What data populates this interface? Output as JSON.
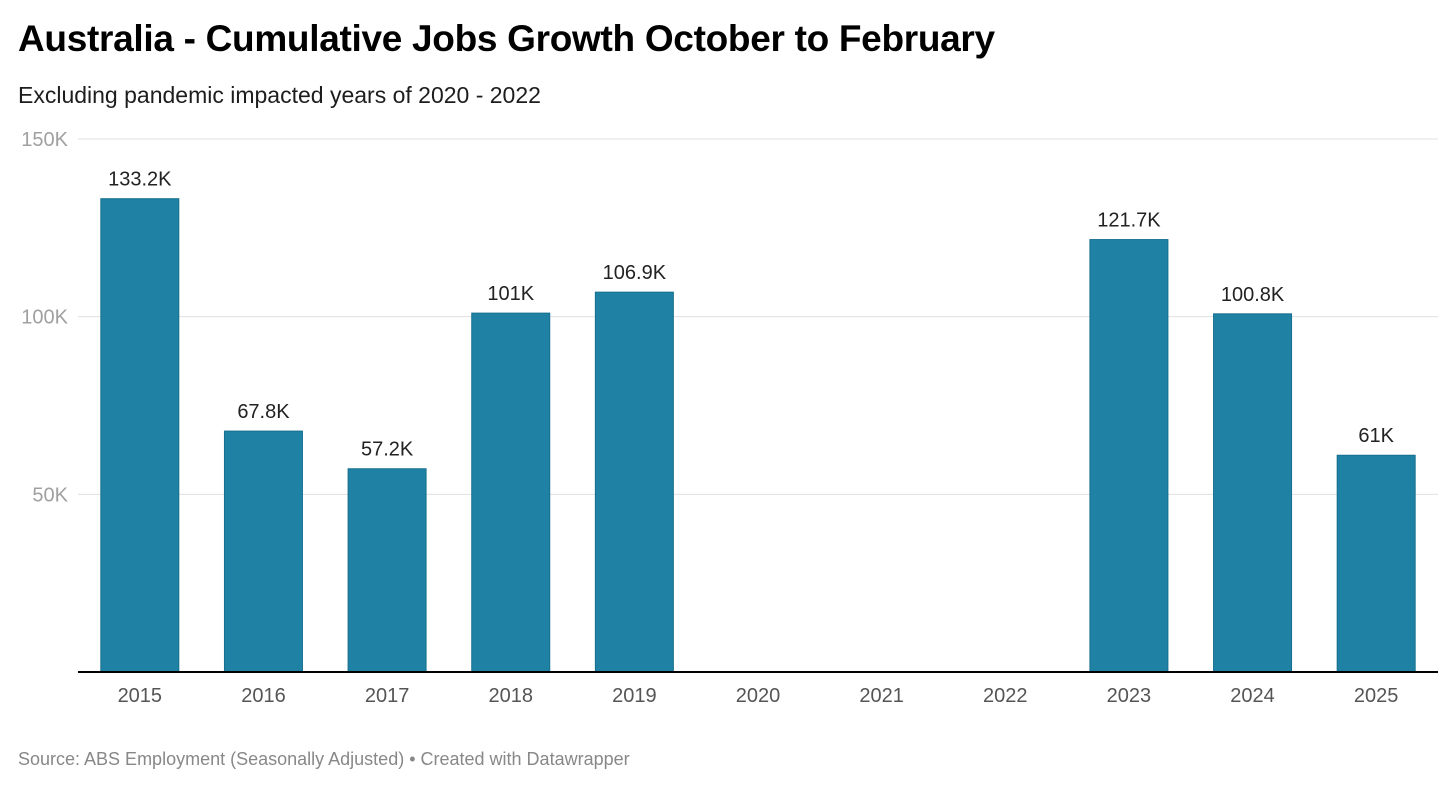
{
  "chart_data": {
    "type": "bar",
    "title": "Australia - Cumulative Jobs Growth October to February",
    "subtitle": "Excluding pandemic impacted years of 2020 - 2022",
    "categories": [
      "2015",
      "2016",
      "2017",
      "2018",
      "2019",
      "2020",
      "2021",
      "2022",
      "2023",
      "2024",
      "2025"
    ],
    "values": [
      133200,
      67800,
      57200,
      101000,
      106900,
      null,
      null,
      null,
      121700,
      100800,
      61000
    ],
    "data_labels": [
      "133.2K",
      "67.8K",
      "57.2K",
      "101K",
      "106.9K",
      "",
      "",
      "",
      "121.7K",
      "100.8K",
      "61K"
    ],
    "ylim": [
      0,
      150000
    ],
    "y_ticks": [
      50000,
      100000,
      150000
    ],
    "y_tick_labels": [
      "50K",
      "100K",
      "150K"
    ],
    "xlabel": "",
    "ylabel": "",
    "grid": true,
    "legend": "none",
    "bar_color": "#1f81a3",
    "gridline_color": "#e0e0e0",
    "axis_color": "#000000"
  },
  "footer": {
    "source": "Source: ABS Employment (Seasonally Adjusted) • Created with Datawrapper"
  }
}
